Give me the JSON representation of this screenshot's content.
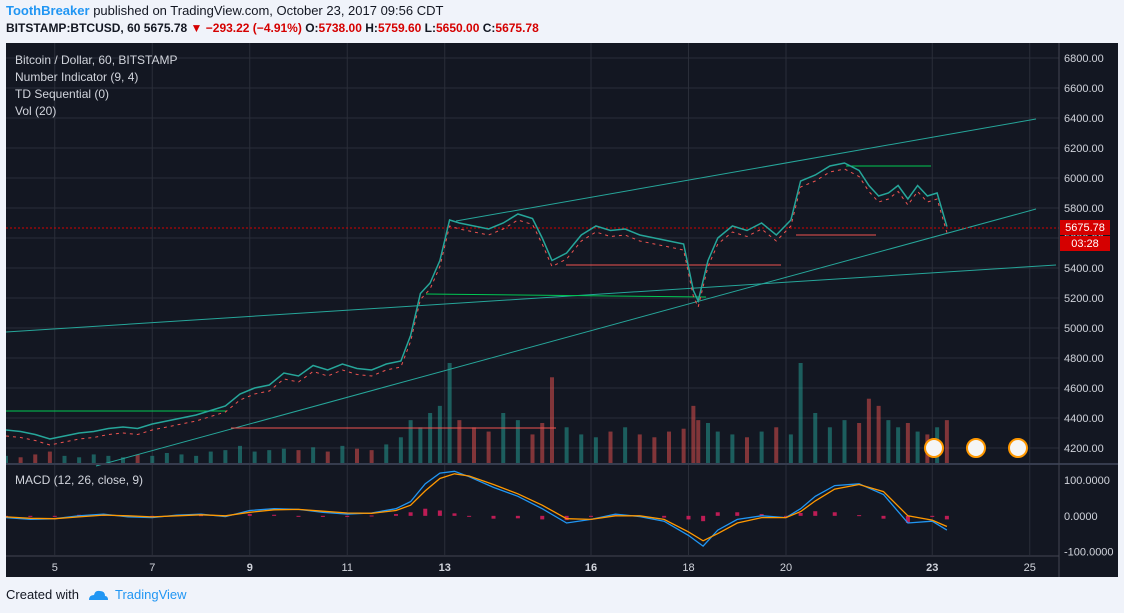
{
  "header": {
    "author": "ToothBreaker",
    "published": "published on TradingView.com, October 23, 2017 09:56 CDT",
    "symbol": "BITSTAMP:BTCUSD, 60",
    "last": "5675.78",
    "change": "−293.22 (−4.91%)",
    "open_label": "O:",
    "open": "5738.00",
    "high_label": "H:",
    "high": "5759.60",
    "low_label": "L:",
    "low": "5650.00",
    "close_label": "C:",
    "close": "5675.78"
  },
  "legend": {
    "title": "Bitcoin / Dollar, 60, BITSTAMP",
    "ind1": "Number Indicator (9, 4)",
    "ind2": "TD Sequential (0)",
    "ind3": "Vol (20)",
    "macd": "MACD (12, 26, close, 9)"
  },
  "price_tag": {
    "price": "5675.78",
    "countdown": "03:28"
  },
  "footer": {
    "created": "Created with",
    "brand": "TradingView"
  },
  "colors": {
    "bg": "#131722",
    "up": "#26a69a",
    "down": "#ef5350",
    "green_cross": "#00c853",
    "trend": "#26a69a",
    "macd": "#2196f3",
    "signal": "#ff9800",
    "hist": "#e91e63"
  },
  "chart_data": {
    "type": "line",
    "title": "Bitcoin / Dollar, 60, BITSTAMP",
    "x_ticks": [
      "5",
      "7",
      "9",
      "11",
      "13",
      "16",
      "18",
      "20",
      "23",
      "25"
    ],
    "price_ticks": [
      "6800.00",
      "6600.00",
      "6400.00",
      "6200.00",
      "6000.00",
      "5800.00",
      "5600.00",
      "5400.00",
      "5200.00",
      "5000.00",
      "4800.00",
      "4600.00",
      "4400.00",
      "4200.00"
    ],
    "price_ylim": [
      4100,
      6900
    ],
    "macd_ticks": [
      "100.0000",
      "0.0000",
      "-100.0000"
    ],
    "macd_ylim": [
      -110,
      140
    ],
    "x_range": [
      4.0,
      25.6
    ],
    "series": [
      {
        "x": [
          4.0,
          4.3,
          4.6,
          4.9,
          5.2,
          5.5,
          5.8,
          6.1,
          6.4,
          6.7,
          7.0,
          7.3,
          7.6,
          7.9,
          8.2,
          8.5,
          8.8,
          9.1,
          9.4,
          9.7,
          10.0,
          10.3,
          10.6,
          10.9,
          11.2,
          11.5,
          11.8,
          12.1,
          12.3,
          12.5,
          12.7,
          12.9,
          13.1,
          13.3,
          13.6,
          13.9,
          14.2,
          14.5,
          14.8,
          15.0,
          15.2,
          15.5,
          15.8,
          16.1,
          16.4,
          16.7,
          17.0,
          17.3,
          17.6,
          17.9,
          18.1,
          18.2,
          18.4,
          18.6,
          18.9,
          19.2,
          19.5,
          19.8,
          20.1,
          20.3,
          20.6,
          20.9,
          21.2,
          21.5,
          21.7,
          21.9,
          22.1,
          22.3,
          22.5,
          22.7,
          22.9,
          23.1,
          23.3
        ],
        "values": [
          4320,
          4310,
          4290,
          4260,
          4280,
          4300,
          4310,
          4330,
          4340,
          4330,
          4360,
          4380,
          4400,
          4420,
          4450,
          4480,
          4560,
          4600,
          4620,
          4700,
          4680,
          4750,
          4720,
          4760,
          4730,
          4720,
          4760,
          4780,
          4950,
          5230,
          5300,
          5450,
          5720,
          5700,
          5680,
          5660,
          5700,
          5760,
          5730,
          5600,
          5450,
          5500,
          5620,
          5680,
          5650,
          5660,
          5620,
          5600,
          5580,
          5560,
          5250,
          5180,
          5450,
          5600,
          5680,
          5650,
          5700,
          5620,
          5720,
          5980,
          6020,
          6080,
          6100,
          6050,
          5950,
          5880,
          5900,
          5950,
          5860,
          5950,
          5880,
          5900,
          5676
        ]
      }
    ],
    "volume": [
      5,
      4,
      6,
      8,
      5,
      4,
      6,
      5,
      4,
      6,
      5,
      7,
      6,
      5,
      8,
      9,
      12,
      8,
      9,
      10,
      9,
      11,
      8,
      12,
      10,
      9,
      13,
      18,
      30,
      25,
      35,
      40,
      70,
      30,
      25,
      22,
      35,
      30,
      20,
      28,
      60,
      25,
      20,
      18,
      22,
      25,
      20,
      18,
      22,
      24,
      40,
      30,
      28,
      22,
      20,
      18,
      22,
      25,
      20,
      70,
      35,
      25,
      30,
      28,
      45,
      40,
      30,
      25,
      28,
      22,
      20,
      25,
      30
    ],
    "macd_series": [
      {
        "name": "MACD",
        "x": [
          4.0,
          4.5,
          5.0,
          5.5,
          6.0,
          6.5,
          7.0,
          7.5,
          8.0,
          8.5,
          9.0,
          9.5,
          10.0,
          10.5,
          11.0,
          11.5,
          12.0,
          12.3,
          12.6,
          12.9,
          13.2,
          13.5,
          14.0,
          14.5,
          15.0,
          15.5,
          16.0,
          16.5,
          17.0,
          17.5,
          18.0,
          18.3,
          18.6,
          19.0,
          19.5,
          20.0,
          20.3,
          20.6,
          21.0,
          21.5,
          22.0,
          22.5,
          23.0,
          23.3
        ],
        "values": [
          -5,
          -10,
          -8,
          0,
          5,
          -3,
          -5,
          2,
          5,
          -2,
          15,
          20,
          18,
          10,
          5,
          8,
          20,
          40,
          90,
          120,
          125,
          110,
          80,
          55,
          20,
          -20,
          -10,
          5,
          -2,
          -15,
          -55,
          -85,
          -40,
          -10,
          0,
          -5,
          20,
          55,
          85,
          90,
          60,
          -20,
          -15,
          -40
        ]
      },
      {
        "name": "Signal",
        "x": [
          4.0,
          4.5,
          5.0,
          5.5,
          6.0,
          6.5,
          7.0,
          7.5,
          8.0,
          8.5,
          9.0,
          9.5,
          10.0,
          10.5,
          11.0,
          11.5,
          12.0,
          12.3,
          12.6,
          12.9,
          13.2,
          13.5,
          14.0,
          14.5,
          15.0,
          15.5,
          16.0,
          16.5,
          17.0,
          17.5,
          18.0,
          18.3,
          18.6,
          19.0,
          19.5,
          20.0,
          20.3,
          20.6,
          21.0,
          21.5,
          22.0,
          22.5,
          23.0,
          23.3
        ],
        "values": [
          -3,
          -7,
          -8,
          -3,
          2,
          0,
          -3,
          0,
          3,
          0,
          10,
          17,
          18,
          13,
          8,
          7,
          15,
          30,
          70,
          105,
          118,
          112,
          88,
          62,
          30,
          -8,
          -10,
          0,
          0,
          -10,
          -45,
          -70,
          -50,
          -20,
          -5,
          -5,
          12,
          42,
          75,
          88,
          68,
          0,
          -12,
          -30
        ]
      }
    ],
    "legend_position": "top-left",
    "grid": true
  }
}
